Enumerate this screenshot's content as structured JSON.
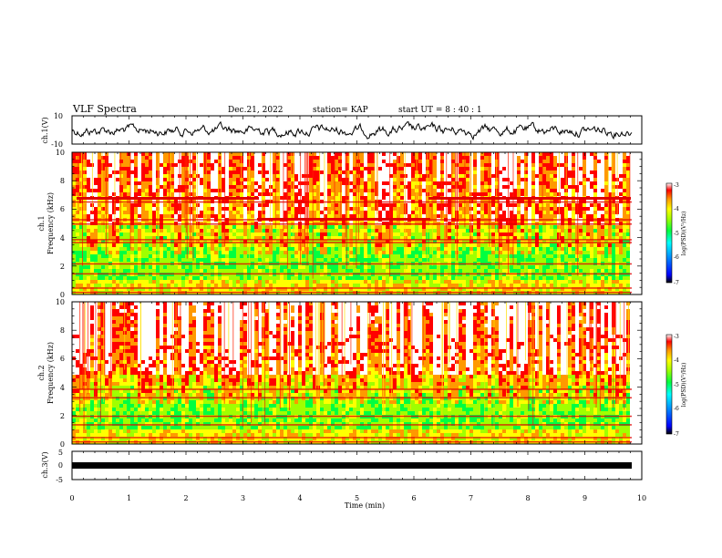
{
  "header": {
    "title": "VLF Spectra",
    "date": "Dec.21, 2022",
    "station": "station= KAP",
    "start": "start  UT =   8  : 40 : 1"
  },
  "chart_data": [
    {
      "type": "line",
      "panel": "ch1-waveform",
      "ylabel": "ch.1(V)",
      "ylim": [
        -10,
        10
      ],
      "yticks": [
        "10",
        "-10"
      ],
      "xlim": [
        0,
        10
      ]
    },
    {
      "type": "heatmap",
      "panel": "ch1-spectrogram",
      "ylabel_line1": "ch.1",
      "ylabel_line2": "Frequency  (kHz)",
      "ylim": [
        0,
        10
      ],
      "yticks": [
        "0",
        "2",
        "4",
        "6",
        "8",
        "10"
      ],
      "xlim": [
        0,
        10
      ],
      "colorbar": {
        "label": "log(PSD)(V²/Hz)",
        "ticks": [
          "-3",
          "-4",
          "-5",
          "-6",
          "-7"
        ],
        "range": [
          -7,
          -3
        ]
      }
    },
    {
      "type": "heatmap",
      "panel": "ch2-spectrogram",
      "ylabel_line1": "ch.2",
      "ylabel_line2": "Frequency  (kHz)",
      "ylim": [
        0,
        10
      ],
      "yticks": [
        "0",
        "2",
        "4",
        "6",
        "8",
        "10"
      ],
      "xlim": [
        0,
        10
      ],
      "colorbar": {
        "label": "log(PSD)(V²/Hz)",
        "ticks": [
          "-3",
          "-4",
          "-5",
          "-6",
          "-7"
        ],
        "range": [
          -7,
          -3
        ]
      }
    },
    {
      "type": "line",
      "panel": "ch3-waveform",
      "ylabel": "ch.3(V)",
      "ylim": [
        -5,
        5
      ],
      "yticks": [
        "5",
        "0",
        "-5"
      ],
      "xlim": [
        0,
        10
      ]
    }
  ],
  "xaxis": {
    "label": "Time  (min)",
    "ticks": [
      "0",
      "1",
      "2",
      "3",
      "4",
      "5",
      "6",
      "7",
      "8",
      "9",
      "10"
    ]
  },
  "colors": {
    "colormap": [
      "#000080",
      "#0000ff",
      "#00a0ff",
      "#00ffff",
      "#00ff40",
      "#a0ff00",
      "#ffff00",
      "#ff9900",
      "#ff0000",
      "#ffffff"
    ]
  }
}
